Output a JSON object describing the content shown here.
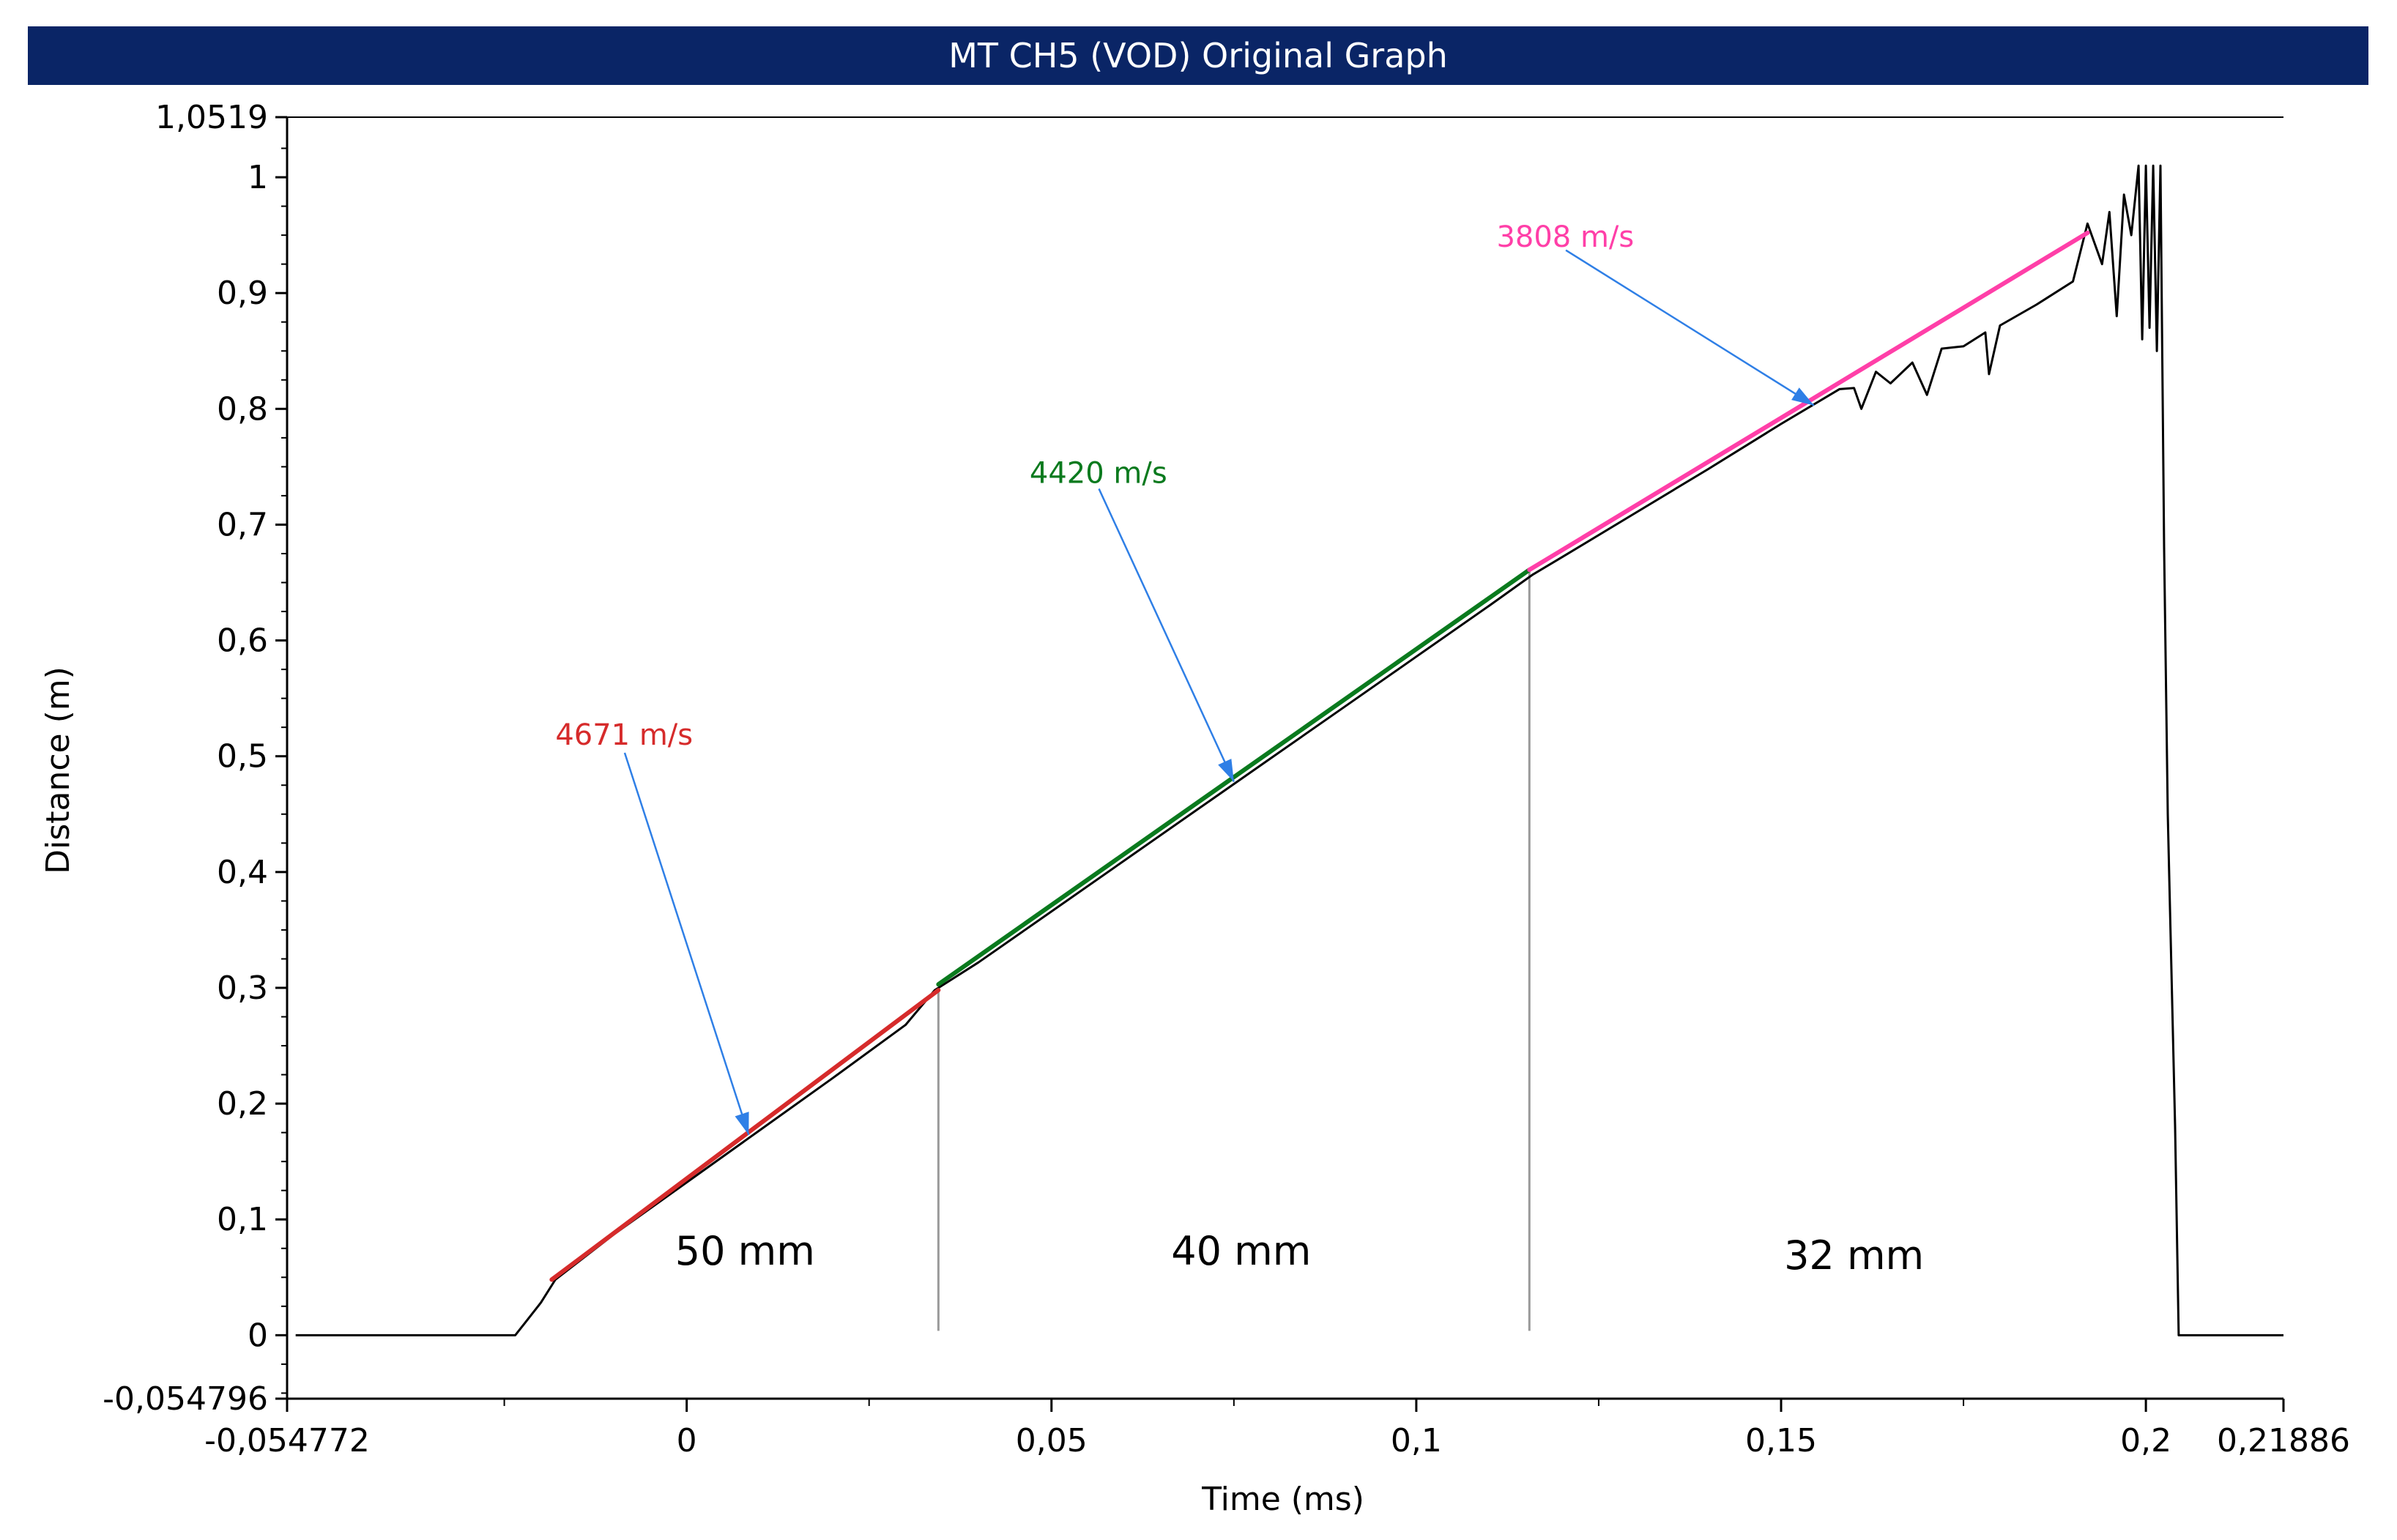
{
  "title": "MT CH5 (VOD) Original Graph",
  "colors": {
    "title_bg": "#0a2566",
    "trace": "#000000",
    "annotation_arrow": "#2f7fe6",
    "divider": "#9a9a9a"
  },
  "chart_data": {
    "type": "line",
    "xlabel": "Time (ms)",
    "ylabel": "Distance (m)",
    "xlim": [
      -0.054772,
      0.21886
    ],
    "ylim": [
      -0.054796,
      1.0519
    ],
    "x_ticks": [
      {
        "value": -0.054772,
        "label": "-0,054772"
      },
      {
        "value": 0,
        "label": "0"
      },
      {
        "value": 0.05,
        "label": "0,05"
      },
      {
        "value": 0.1,
        "label": "0,1"
      },
      {
        "value": 0.15,
        "label": "0,15"
      },
      {
        "value": 0.2,
        "label": "0,2"
      },
      {
        "value": 0.21886,
        "label": "0,21886"
      }
    ],
    "y_ticks": [
      {
        "value": 1.0519,
        "label": "1,0519"
      },
      {
        "value": 1.0,
        "label": "1"
      },
      {
        "value": 0.9,
        "label": "0,9"
      },
      {
        "value": 0.8,
        "label": "0,8"
      },
      {
        "value": 0.7,
        "label": "0,7"
      },
      {
        "value": 0.6,
        "label": "0,6"
      },
      {
        "value": 0.5,
        "label": "0,5"
      },
      {
        "value": 0.4,
        "label": "0,4"
      },
      {
        "value": 0.3,
        "label": "0,3"
      },
      {
        "value": 0.2,
        "label": "0,2"
      },
      {
        "value": 0.1,
        "label": "0,1"
      },
      {
        "value": 0,
        "label": "0"
      },
      {
        "value": -0.054796,
        "label": "-0,054796"
      }
    ],
    "trace": {
      "x": [
        -0.0536,
        -0.025,
        -0.0235,
        -0.022,
        -0.02,
        -0.018,
        -0.01,
        0.0,
        0.01,
        0.02,
        0.03,
        0.034,
        0.04,
        0.05,
        0.06,
        0.07,
        0.08,
        0.09,
        0.1,
        0.11,
        0.116,
        0.12,
        0.13,
        0.14,
        0.15,
        0.158,
        0.16,
        0.161,
        0.163,
        0.165,
        0.168,
        0.17,
        0.172,
        0.175,
        0.178,
        0.1785,
        0.18,
        0.185,
        0.19,
        0.192,
        0.194,
        0.195,
        0.196,
        0.197,
        0.198,
        0.199,
        0.1995,
        0.2,
        0.2005,
        0.201,
        0.2015,
        0.202,
        0.2025,
        0.203,
        0.204,
        0.2045,
        0.2055,
        0.21886
      ],
      "y": [
        0.0,
        0.0,
        0.0,
        0.012,
        0.028,
        0.048,
        0.087,
        0.132,
        0.177,
        0.222,
        0.268,
        0.298,
        0.322,
        0.366,
        0.41,
        0.454,
        0.498,
        0.542,
        0.586,
        0.63,
        0.657,
        0.672,
        0.71,
        0.748,
        0.787,
        0.817,
        0.818,
        0.8,
        0.832,
        0.822,
        0.84,
        0.812,
        0.852,
        0.854,
        0.866,
        0.83,
        0.872,
        0.89,
        0.91,
        0.96,
        0.925,
        0.97,
        0.88,
        0.985,
        0.95,
        1.01,
        0.86,
        1.01,
        0.87,
        1.01,
        0.85,
        1.01,
        0.68,
        0.45,
        0.18,
        0.0,
        0.0,
        0.0
      ]
    },
    "fits": [
      {
        "label": "4671 m/s",
        "color": "#d62b2b",
        "x": [
          -0.0185,
          0.0345
        ],
        "y": [
          0.048,
          0.298
        ]
      },
      {
        "label": "4420 m/s",
        "color": "#0a7a1e",
        "x": [
          0.0345,
          0.1155
        ],
        "y": [
          0.303,
          0.661
        ]
      },
      {
        "label": "3808 m/s",
        "color": "#ff3fa8",
        "x": [
          0.1155,
          0.192
        ],
        "y": [
          0.661,
          0.952
        ]
      }
    ],
    "dividers": [
      {
        "x": 0.0345,
        "y": 0.298
      },
      {
        "x": 0.1155,
        "y": 0.661
      }
    ],
    "velocity_annotations": [
      {
        "label": "4671 m/s",
        "color": "#d62b2b",
        "text_x": -0.018,
        "text_y": 0.51,
        "arrow_from": [
          -0.0085,
          0.503
        ],
        "arrow_to": [
          0.0085,
          0.173
        ]
      },
      {
        "label": "4420 m/s",
        "color": "#0a7a1e",
        "text_x": 0.047,
        "text_y": 0.736,
        "arrow_from": [
          0.0565,
          0.731
        ],
        "arrow_to": [
          0.075,
          0.478
        ]
      },
      {
        "label": "3808 m/s",
        "color": "#ff3fa8",
        "text_x": 0.111,
        "text_y": 0.94,
        "arrow_from": [
          0.1205,
          0.937
        ],
        "arrow_to": [
          0.1545,
          0.803
        ]
      }
    ],
    "segment_labels": [
      {
        "label": "50 mm",
        "x": 0.008,
        "y": 0.061
      },
      {
        "label": "40 mm",
        "x": 0.076,
        "y": 0.061
      },
      {
        "label": "32 mm",
        "x": 0.16,
        "y": 0.057
      }
    ]
  }
}
